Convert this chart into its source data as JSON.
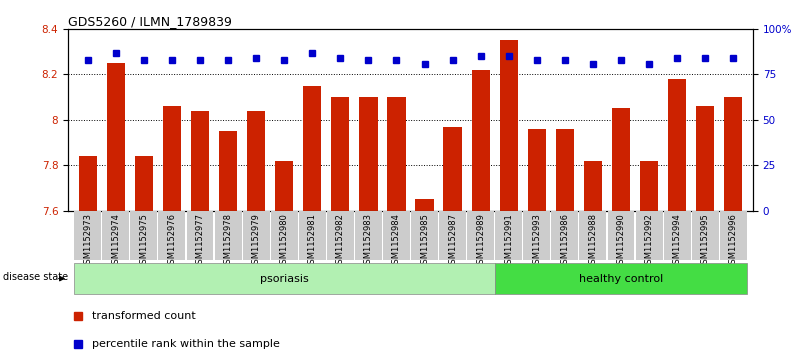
{
  "title": "GDS5260 / ILMN_1789839",
  "samples": [
    "GSM1152973",
    "GSM1152974",
    "GSM1152975",
    "GSM1152976",
    "GSM1152977",
    "GSM1152978",
    "GSM1152979",
    "GSM1152980",
    "GSM1152981",
    "GSM1152982",
    "GSM1152983",
    "GSM1152984",
    "GSM1152985",
    "GSM1152987",
    "GSM1152989",
    "GSM1152991",
    "GSM1152993",
    "GSM1152986",
    "GSM1152988",
    "GSM1152990",
    "GSM1152992",
    "GSM1152994",
    "GSM1152995",
    "GSM1152996"
  ],
  "bar_values": [
    7.84,
    8.25,
    7.84,
    8.06,
    8.04,
    7.95,
    8.04,
    7.82,
    8.15,
    8.1,
    8.1,
    8.1,
    7.65,
    7.97,
    8.22,
    8.35,
    7.96,
    7.96,
    7.82,
    8.05,
    7.82,
    8.18,
    8.06,
    8.1
  ],
  "percentile_values": [
    83,
    87,
    83,
    83,
    83,
    83,
    84,
    83,
    87,
    84,
    83,
    83,
    81,
    83,
    85,
    85,
    83,
    83,
    81,
    83,
    81,
    84,
    84,
    84
  ],
  "psoriasis_count": 15,
  "healthy_count": 9,
  "ylim_left": [
    7.6,
    8.4
  ],
  "ylim_right": [
    0,
    100
  ],
  "yticks_left": [
    7.6,
    7.8,
    8.0,
    8.2,
    8.4
  ],
  "ytick_labels_left": [
    "7.6",
    "7.8",
    "8",
    "8.2",
    "8.4"
  ],
  "yticks_right": [
    0,
    25,
    50,
    75,
    100
  ],
  "ytick_labels_right": [
    "0",
    "25",
    "50",
    "75",
    "100%"
  ],
  "bar_color": "#cc2200",
  "dot_color": "#0000cc",
  "psoriasis_color": "#b2f0b2",
  "healthy_color": "#44dd44",
  "label_bg_color": "#cccccc",
  "psoriasis_label": "psoriasis",
  "healthy_label": "healthy control",
  "disease_state_label": "disease state",
  "legend_bar_label": "transformed count",
  "legend_dot_label": "percentile rank within the sample",
  "grid_lines": [
    7.8,
    8.0,
    8.2
  ]
}
